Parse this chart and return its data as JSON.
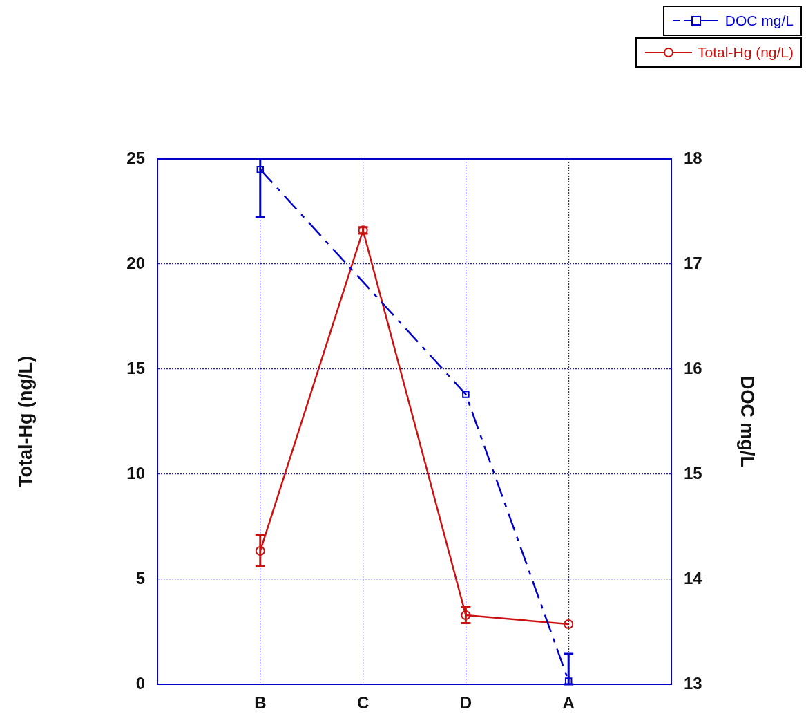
{
  "chart_data": {
    "type": "line",
    "categories": [
      "B",
      "C",
      "D",
      "A"
    ],
    "ylabel": "Total-Hg (ng/L)",
    "y2label": "DOC mg/L",
    "ylim": [
      0,
      25
    ],
    "yticks": [
      0,
      5,
      10,
      15,
      20,
      25
    ],
    "y2lim": [
      13,
      18
    ],
    "y2ticks": [
      13,
      14,
      15,
      16,
      17,
      18
    ],
    "grid": true,
    "legend": "top right",
    "series": [
      {
        "name": "DOC mg/L",
        "color": "#0000cc",
        "axis": "y2",
        "marker": "square",
        "line_style": "dashed",
        "values": [
          17.9,
          null,
          15.76,
          13.03
        ],
        "errors": [
          [
            17.45,
            18
          ],
          null,
          null,
          [
            13,
            13.29
          ]
        ]
      },
      {
        "name": "Total-Hg (ng/L)",
        "color": "#cc1111",
        "marker": "circle",
        "line_style": "solid",
        "values": [
          6.35,
          21.6,
          3.29,
          2.86
        ],
        "errors": [
          0.74,
          0.15,
          0.38,
          null
        ]
      }
    ]
  }
}
